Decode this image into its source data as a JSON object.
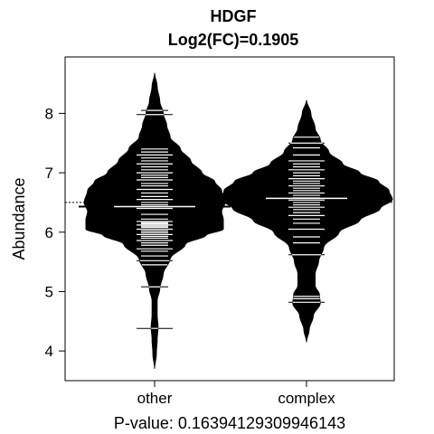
{
  "chart_data": {
    "type": "beanplot",
    "title": "HDGF",
    "subtitle": "Log2(FC)=0.1905",
    "ylabel": "Abundance",
    "xlabel": "",
    "footer": "P-value: 0.16394129309946143",
    "categories": [
      "other",
      "complex"
    ],
    "yticks": [
      4,
      5,
      6,
      7,
      8
    ],
    "ylim": [
      3.5,
      8.95
    ],
    "overall_mean": 6.5,
    "grid": false,
    "legend": "none",
    "groups": [
      {
        "name": "other",
        "mean": 6.43,
        "range": [
          3.7,
          8.68
        ],
        "density": [
          [
            3.7,
            0.0
          ],
          [
            3.95,
            0.02
          ],
          [
            4.2,
            0.03
          ],
          [
            4.4,
            0.04
          ],
          [
            4.6,
            0.03
          ],
          [
            4.85,
            0.03
          ],
          [
            5.05,
            0.06
          ],
          [
            5.3,
            0.1
          ],
          [
            5.55,
            0.18
          ],
          [
            5.8,
            0.36
          ],
          [
            5.95,
            0.6
          ],
          [
            6.05,
            0.8
          ],
          [
            6.2,
            0.8
          ],
          [
            6.35,
            0.78
          ],
          [
            6.5,
            0.82
          ],
          [
            6.7,
            0.78
          ],
          [
            6.85,
            0.7
          ],
          [
            7.0,
            0.55
          ],
          [
            7.2,
            0.42
          ],
          [
            7.4,
            0.3
          ],
          [
            7.6,
            0.18
          ],
          [
            7.8,
            0.14
          ],
          [
            8.0,
            0.1
          ],
          [
            8.2,
            0.06
          ],
          [
            8.45,
            0.03
          ],
          [
            8.68,
            0.0
          ]
        ],
        "values": [
          4.38,
          5.08,
          5.45,
          5.52,
          5.6,
          5.68,
          5.72,
          5.78,
          5.82,
          5.86,
          5.9,
          5.93,
          5.96,
          5.99,
          6.02,
          6.05,
          6.08,
          6.1,
          6.12,
          6.14,
          6.16,
          6.18,
          6.22,
          6.3,
          6.4,
          6.46,
          6.5,
          6.55,
          6.6,
          6.66,
          6.72,
          6.78,
          6.82,
          6.88,
          6.92,
          6.96,
          7.0,
          7.05,
          7.1,
          7.15,
          7.2,
          7.25,
          7.3,
          7.35,
          7.4,
          7.98,
          8.05
        ]
      },
      {
        "name": "complex",
        "mean": 6.57,
        "range": [
          4.15,
          8.22
        ],
        "density": [
          [
            4.15,
            0.0
          ],
          [
            4.35,
            0.03
          ],
          [
            4.6,
            0.08
          ],
          [
            4.8,
            0.16
          ],
          [
            4.95,
            0.15
          ],
          [
            5.1,
            0.1
          ],
          [
            5.3,
            0.1
          ],
          [
            5.5,
            0.14
          ],
          [
            5.75,
            0.2
          ],
          [
            6.0,
            0.38
          ],
          [
            6.2,
            0.62
          ],
          [
            6.4,
            0.86
          ],
          [
            6.55,
            1.0
          ],
          [
            6.7,
            0.96
          ],
          [
            6.85,
            0.84
          ],
          [
            7.0,
            0.62
          ],
          [
            7.15,
            0.42
          ],
          [
            7.35,
            0.26
          ],
          [
            7.55,
            0.16
          ],
          [
            7.75,
            0.1
          ],
          [
            8.0,
            0.05
          ],
          [
            8.22,
            0.0
          ]
        ],
        "values": [
          4.82,
          4.88,
          4.92,
          5.62,
          5.82,
          5.92,
          6.05,
          6.15,
          6.22,
          6.28,
          6.33,
          6.38,
          6.42,
          6.46,
          6.5,
          6.54,
          6.58,
          6.62,
          6.66,
          6.7,
          6.74,
          6.78,
          6.82,
          6.86,
          6.9,
          6.95,
          7.0,
          7.05,
          7.1,
          7.15,
          7.2,
          7.3,
          7.42,
          7.5,
          7.6
        ]
      }
    ]
  }
}
